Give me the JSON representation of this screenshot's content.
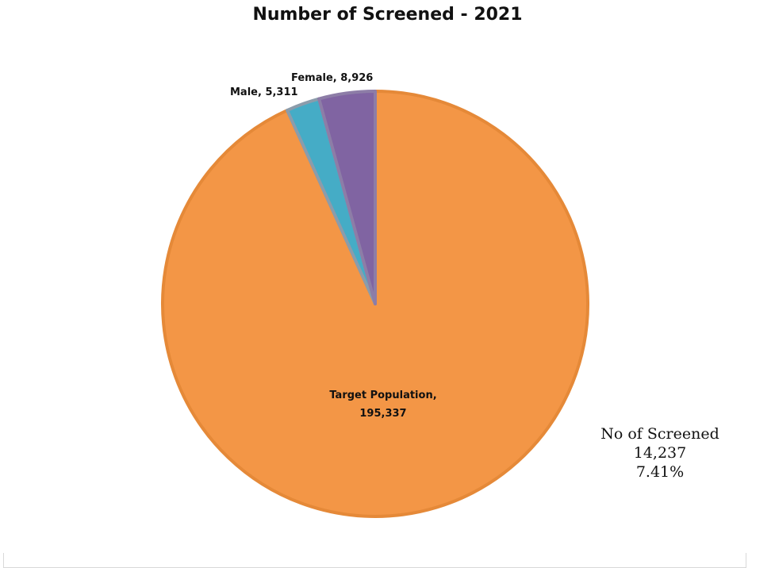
{
  "chart_data": {
    "type": "pie",
    "title": "Number of Screened - 2021",
    "slices": [
      {
        "name": "Target Population",
        "value": 195337,
        "label": "Target Population,",
        "label2": "195,337",
        "color": "#F39646",
        "stroke": "#E58938"
      },
      {
        "name": "Male",
        "value": 5311,
        "label": "Male, 5,311",
        "color": "#45ACC6",
        "stroke": "#8B9CAB"
      },
      {
        "name": "Female",
        "value": 8926,
        "label": "Female, 8,926",
        "color": "#8064A2",
        "stroke": "#8D7DA7"
      }
    ],
    "annotation": {
      "line1": "No of Screened",
      "line2": "14,237",
      "line3": "7.41%"
    }
  }
}
